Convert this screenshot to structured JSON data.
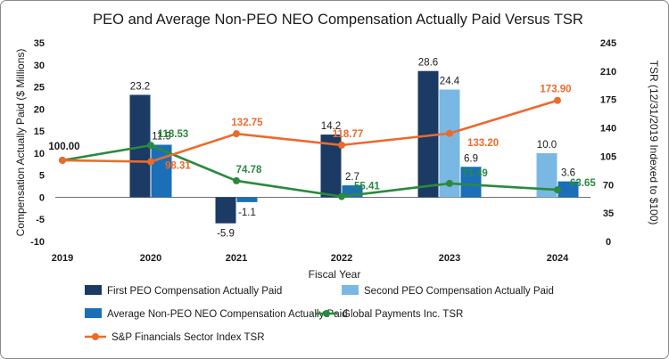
{
  "chart_data": {
    "type": "bar",
    "title": "PEO and Average Non-PEO NEO Compensation Actually Paid Versus TSR",
    "xlabel": "Fiscal Year",
    "ylabel": "Compensation Actually Paid ($ Millions)",
    "y2label": "TSR (12/31/2019 Indexed to $100)",
    "categories": [
      "2019",
      "2020",
      "2021",
      "2022",
      "2023",
      "2024"
    ],
    "ylim": [
      -10,
      35
    ],
    "yticks": [
      "35",
      "30",
      "25",
      "20",
      "15",
      "10",
      "5",
      "0",
      "-5",
      "-10"
    ],
    "y2lim": [
      0,
      245
    ],
    "y2ticks": [
      "245",
      "210",
      "175",
      "140",
      "105",
      "70",
      "35",
      "0"
    ],
    "bar_series": [
      {
        "name": "First PEO Compensation Actually Paid",
        "color": "#1b3a64",
        "values": [
          null,
          23.2,
          -5.9,
          14.2,
          28.6,
          null
        ],
        "labels": [
          "",
          "23.2",
          "-5.9",
          "14.2",
          "28.6",
          ""
        ]
      },
      {
        "name": "Second PEO Compensation Actually Paid",
        "color": "#7ab8e4",
        "values": [
          null,
          null,
          null,
          null,
          24.4,
          10.0
        ],
        "labels": [
          "",
          "",
          "",
          "",
          "24.4",
          "10.0"
        ]
      },
      {
        "name": "Average Non-PEO NEO Compensation Actually Paid",
        "color": "#1a6fb8",
        "values": [
          null,
          11.9,
          -1.1,
          2.7,
          6.9,
          3.6
        ],
        "labels": [
          "",
          "11.9",
          "-1.1",
          "2.7",
          "6.9",
          "3.6"
        ]
      }
    ],
    "line_series": [
      {
        "name": "Global Payments Inc. TSR",
        "color": "#2a8a3e",
        "values": [
          100.0,
          118.53,
          74.78,
          55.41,
          71.49,
          63.65
        ],
        "labels": [
          "100.00",
          "118.53",
          "74.78",
          "55.41",
          "71.49",
          "63.65"
        ]
      },
      {
        "name": "S&P Financials Sector Index TSR",
        "color": "#ec6a2c",
        "values": [
          100.0,
          98.31,
          132.75,
          118.77,
          133.2,
          173.9
        ],
        "labels": [
          "",
          "98.31",
          "132.75",
          "118.77",
          "133.20",
          "173.90"
        ]
      }
    ],
    "legend_position": "bottom"
  }
}
